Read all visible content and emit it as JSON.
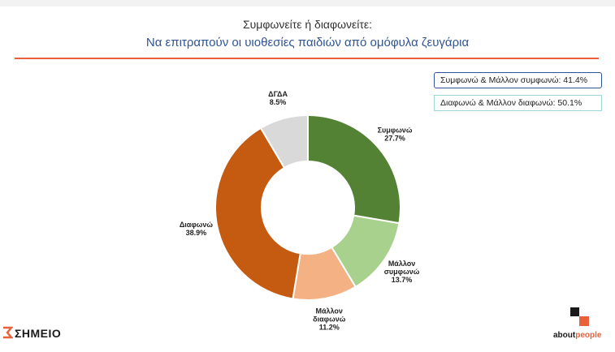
{
  "chart_data": {
    "type": "pie",
    "variant": "donut",
    "title": "Συμφωνείτε ή διαφωνείτε:",
    "subtitle": "Να επιτραπούν οι υιοθεσίες παιδιών από ομόφυλα ζευγάρια",
    "slices": [
      {
        "label_lines": [
          "Συμφωνώ"
        ],
        "value": 27.7,
        "value_text": "27.7%",
        "color": "#548235"
      },
      {
        "label_lines": [
          "Μάλλον",
          "συμφωνώ"
        ],
        "value": 13.7,
        "value_text": "13.7%",
        "color": "#a9d18e"
      },
      {
        "label_lines": [
          "Μάλλον",
          "διαφωνώ"
        ],
        "value": 11.2,
        "value_text": "11.2%",
        "color": "#f4b183"
      },
      {
        "label_lines": [
          "Διαφωνώ"
        ],
        "value": 38.9,
        "value_text": "38.9%",
        "color": "#c55a11"
      },
      {
        "label_lines": [
          "ΔΓΔΑ"
        ],
        "value": 8.5,
        "value_text": "8.5%",
        "color": "#d9d9d9"
      }
    ]
  },
  "summary": [
    {
      "text": "Συμφωνώ & Μάλλον συμφωνώ: 41.4%"
    },
    {
      "text": "Διαφωνώ & Μάλλον διαφωνώ: 50.1%"
    }
  ],
  "logos": {
    "left": "ΣΗΜΕΙΟ",
    "right_main": "about",
    "right_accent": "people"
  },
  "colors": {
    "title_blue": "#2f5496",
    "rule_orange": "#e8603c"
  }
}
